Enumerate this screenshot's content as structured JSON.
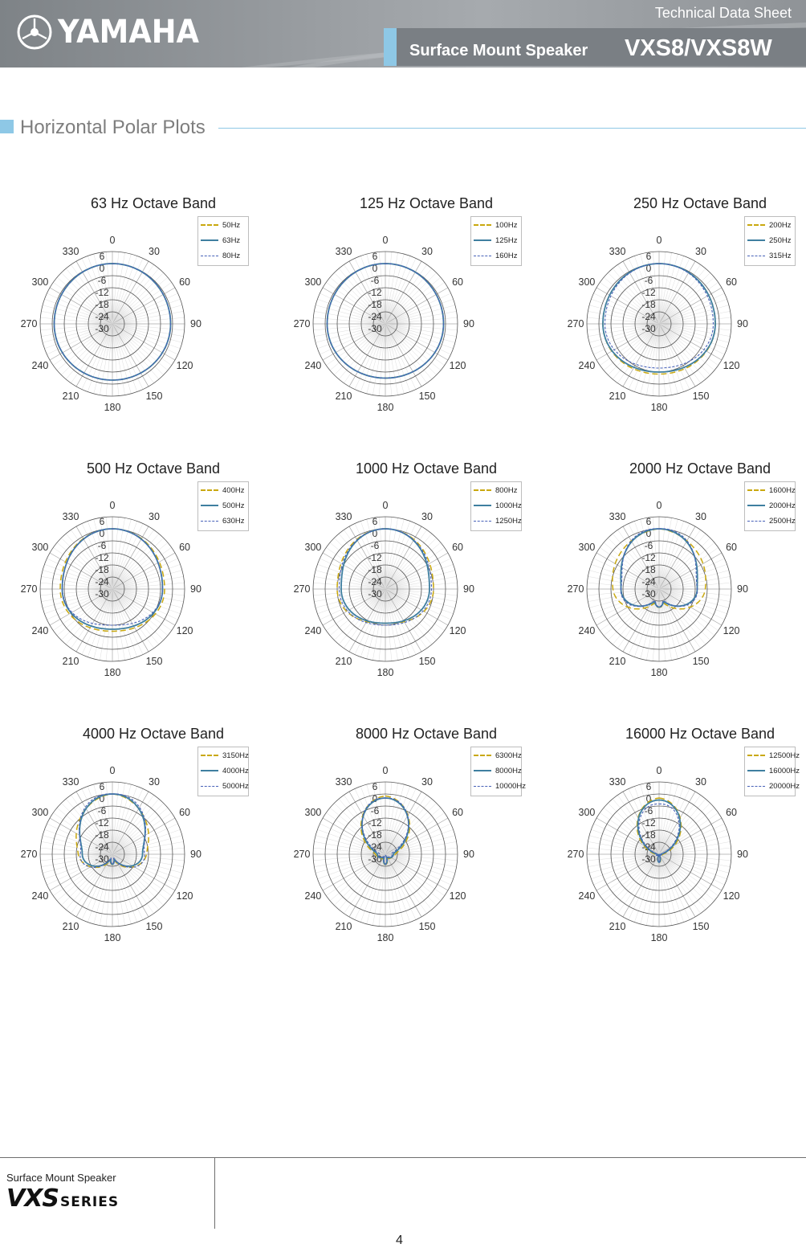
{
  "header": {
    "brand": "YAMAHA",
    "doc_type": "Technical Data Sheet",
    "product_subtitle": "Surface Mount Speaker",
    "product_model": "VXS8/VXS8W",
    "logo_icon": "tuning-forks-emblem-icon"
  },
  "section": {
    "title": "Horizontal Polar Plots"
  },
  "polar_axis": {
    "radial_labels": [
      "6",
      "0",
      "-6",
      "-12",
      "-18",
      "-24",
      "-30"
    ],
    "angle_labels": [
      "0",
      "30",
      "60",
      "90",
      "120",
      "150",
      "180",
      "210",
      "240",
      "270",
      "300",
      "330"
    ]
  },
  "colors": {
    "series1": "#c9a80e",
    "series2": "#3f7fa0",
    "series3": "#4761b8",
    "accent": "#8ec8e6"
  },
  "chart_data": [
    {
      "type": "polar",
      "title": "63 Hz Octave Band",
      "rlim": [
        -30,
        6
      ],
      "legend": [
        "50Hz",
        "63Hz",
        "80Hz"
      ],
      "level_at_0deg_db": [
        0,
        0,
        0
      ],
      "level_at_90deg_db": [
        -1,
        -1,
        -1
      ],
      "level_at_180deg_db": [
        -2,
        -2,
        -2
      ]
    },
    {
      "type": "polar",
      "title": "125 Hz Octave Band",
      "rlim": [
        -30,
        6
      ],
      "legend": [
        "100Hz",
        "125Hz",
        "160Hz"
      ],
      "level_at_0deg_db": [
        0,
        0,
        0
      ],
      "level_at_90deg_db": [
        -1,
        -1,
        -1
      ],
      "level_at_180deg_db": [
        -3,
        -3,
        -3
      ]
    },
    {
      "type": "polar",
      "title": "250 Hz Octave Band",
      "rlim": [
        -30,
        6
      ],
      "legend": [
        "200Hz",
        "250Hz",
        "315Hz"
      ],
      "level_at_0deg_db": [
        0,
        0,
        0
      ],
      "level_at_90deg_db": [
        -2,
        -2,
        -3
      ],
      "level_at_180deg_db": [
        -5,
        -6,
        -8
      ]
    },
    {
      "type": "polar",
      "title": "500 Hz Octave Band",
      "rlim": [
        -30,
        6
      ],
      "legend": [
        "400Hz",
        "500Hz",
        "630Hz"
      ],
      "level_at_0deg_db": [
        0,
        0,
        0
      ],
      "level_at_90deg_db": [
        -4,
        -5,
        -5
      ],
      "level_at_180deg_db": [
        -9,
        -10,
        -12
      ]
    },
    {
      "type": "polar",
      "title": "1000 Hz Octave Band",
      "rlim": [
        -30,
        6
      ],
      "legend": [
        "800Hz",
        "1000Hz",
        "1250Hz"
      ],
      "level_at_0deg_db": [
        0,
        0,
        0
      ],
      "level_at_90deg_db": [
        -6,
        -8,
        -7
      ],
      "level_at_180deg_db": [
        -13,
        -13,
        -12
      ]
    },
    {
      "type": "polar",
      "title": "2000 Hz Octave Band",
      "rlim": [
        -30,
        6
      ],
      "legend": [
        "1600Hz",
        "2000Hz",
        "2500Hz"
      ],
      "level_at_0deg_db": [
        0,
        0,
        0
      ],
      "level_at_90deg_db": [
        -7,
        -11,
        -11
      ],
      "level_at_180deg_db": [
        -25,
        -25,
        -25
      ]
    },
    {
      "type": "polar",
      "title": "4000 Hz Octave Band",
      "rlim": [
        -30,
        6
      ],
      "legend": [
        "3150Hz",
        "4000Hz",
        "5000Hz"
      ],
      "level_at_0deg_db": [
        0,
        0,
        0
      ],
      "level_at_90deg_db": [
        -13,
        -15,
        -14
      ],
      "level_at_180deg_db": [
        -29,
        -29,
        -29
      ]
    },
    {
      "type": "polar",
      "title": "8000 Hz Octave Band",
      "rlim": [
        -30,
        6
      ],
      "legend": [
        "6300Hz",
        "8000Hz",
        "10000Hz"
      ],
      "level_at_0deg_db": [
        -1,
        -2,
        -2
      ],
      "level_at_90deg_db": [
        -25,
        -26,
        -27
      ],
      "level_at_180deg_db": [
        -29,
        -29,
        -29
      ]
    },
    {
      "type": "polar",
      "title": "16000 Hz Octave Band",
      "rlim": [
        -30,
        6
      ],
      "legend": [
        "12500Hz",
        "16000Hz",
        "20000Hz"
      ],
      "level_at_0deg_db": [
        -2,
        -3,
        -5
      ],
      "level_at_90deg_db": [
        -28,
        -29,
        -29
      ],
      "level_at_180deg_db": [
        -30,
        -30,
        -30
      ]
    }
  ],
  "footer": {
    "subtitle": "Surface Mount Speaker",
    "series_mark": "VXS",
    "series_word": "SERIES",
    "page_number": "4"
  }
}
